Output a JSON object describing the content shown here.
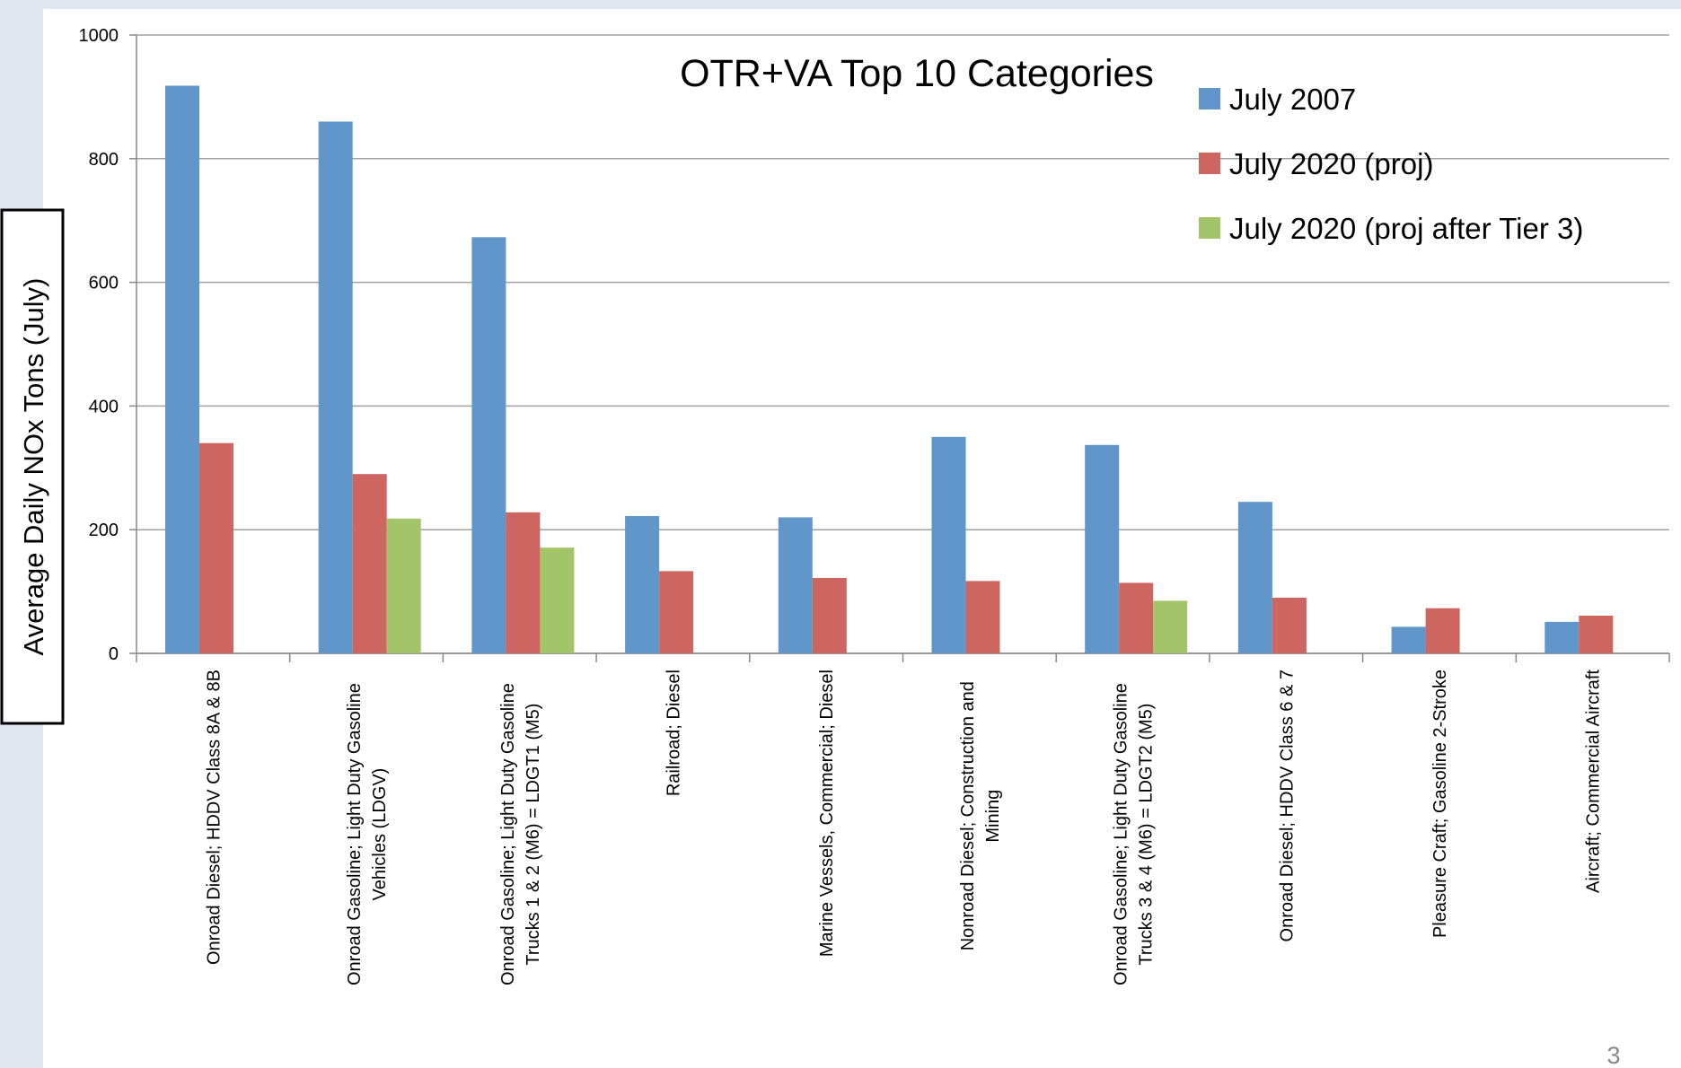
{
  "chart_data": {
    "type": "bar",
    "title": "OTR+VA Top 10 Categories",
    "y_label": "Average Daily NOx Tons (July)",
    "categories": [
      "Onroad Diesel; HDDV Class 8A & 8B",
      "Onroad Gasoline; Light Duty Gasoline Vehicles (LDGV)",
      "Onroad Gasoline; Light Duty Gasoline Trucks 1 & 2 (M6) = LDGT1 (M5)",
      "Railroad; Diesel",
      "Marine Vessels, Commercial; Diesel",
      "Nonroad Diesel; Construction and Mining",
      "Onroad Gasoline; Light Duty Gasoline Trucks 3 & 4 (M6) = LDGT2 (M5)",
      "Onroad Diesel; HDDV Class 6 & 7",
      "Pleasure Craft; Gasoline 2-Stroke",
      "Aircraft; Commercial Aircraft"
    ],
    "series": [
      {
        "name": "July 2007",
        "color": "#6096c9",
        "values": [
          918,
          860,
          673,
          222,
          220,
          350,
          337,
          245,
          43,
          51
        ]
      },
      {
        "name": "July 2020 (proj)",
        "color": "#cd6560",
        "values": [
          340,
          290,
          228,
          133,
          122,
          117,
          114,
          90,
          73,
          61
        ]
      },
      {
        "name": "July 2020 (proj after Tier 3)",
        "color": "#a4c46a",
        "values": [
          null,
          218,
          171,
          null,
          null,
          null,
          85,
          null,
          null,
          null
        ]
      }
    ],
    "ylim": [
      0,
      1000
    ],
    "yticks": [
      0,
      200,
      400,
      600,
      800,
      1000
    ],
    "grid": true,
    "legend": "top-right"
  },
  "page_number": "3"
}
